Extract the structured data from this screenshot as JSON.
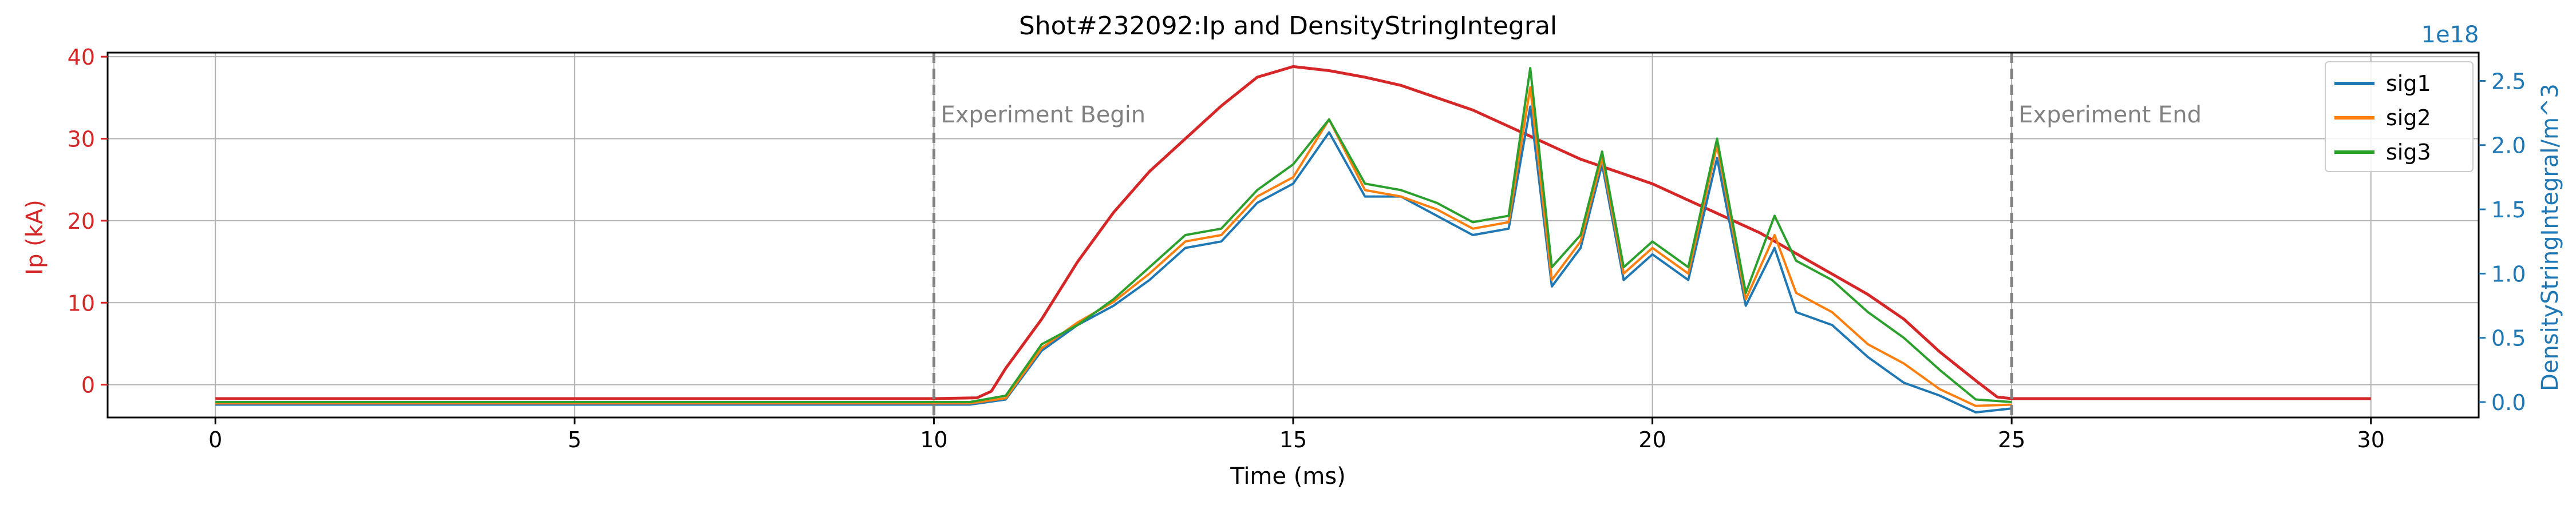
{
  "chart_data": {
    "type": "line",
    "title": "Shot#232092:Ip and DensityStringIntegral",
    "xlabel": "Time (ms)",
    "ylabel_left": "Ip (kA)",
    "ylabel_right": "DensityStringIntegral/m^3",
    "right_axis_multiplier": "1e18",
    "xlim": [
      -1.5,
      31.5
    ],
    "ylim_left": [
      -4.0,
      40.5
    ],
    "ylim_right": [
      -0.12,
      2.72
    ],
    "x_ticks": [
      0,
      5,
      10,
      15,
      20,
      25,
      30
    ],
    "y_left_ticks": [
      0,
      10,
      20,
      30,
      40
    ],
    "y_right_ticks": [
      0.0,
      0.5,
      1.0,
      1.5,
      2.0,
      2.5
    ],
    "grid": true,
    "legend_position": "top-right",
    "colors": {
      "ip": "#d62728",
      "left_axis": "#d62728",
      "right_axis": "#1f77b4",
      "annotation": "#808080"
    },
    "annotations": [
      {
        "x": 10,
        "label": "Experiment Begin"
      },
      {
        "x": 25,
        "label": "Experiment End"
      }
    ],
    "ip_series": {
      "axis": "left",
      "x": [
        0,
        10,
        10.6,
        10.8,
        11.0,
        11.5,
        12.0,
        12.5,
        13.0,
        13.5,
        14.0,
        14.5,
        15.0,
        15.5,
        16.0,
        16.5,
        17.0,
        17.5,
        18.0,
        18.5,
        19.0,
        19.5,
        20.0,
        20.5,
        21.0,
        21.5,
        22.0,
        22.5,
        23.0,
        23.5,
        24.0,
        24.5,
        24.8,
        25.0,
        30.0
      ],
      "y": [
        -1.7,
        -1.7,
        -1.6,
        -0.8,
        2.0,
        8.0,
        15.0,
        21.0,
        26.0,
        30.0,
        34.0,
        37.5,
        38.8,
        38.3,
        37.5,
        36.5,
        35.0,
        33.5,
        31.5,
        29.5,
        27.5,
        26.0,
        24.5,
        22.5,
        20.5,
        18.5,
        16.0,
        13.5,
        11.0,
        8.0,
        4.0,
        0.5,
        -1.5,
        -1.7,
        -1.7
      ]
    },
    "series": [
      {
        "name": "sig1",
        "color": "#1f77b4",
        "axis": "right",
        "x": [
          0,
          10.5,
          11.0,
          11.5,
          12.0,
          12.5,
          13.0,
          13.5,
          14.0,
          14.5,
          15.0,
          15.5,
          16.0,
          16.5,
          17.0,
          17.5,
          18.0,
          18.3,
          18.6,
          19.0,
          19.3,
          19.6,
          20.0,
          20.5,
          20.9,
          21.3,
          21.7,
          22.0,
          22.5,
          23.0,
          23.5,
          24.0,
          24.5,
          25.0
        ],
        "y": [
          -0.02,
          -0.02,
          0.02,
          0.4,
          0.6,
          0.75,
          0.95,
          1.2,
          1.25,
          1.55,
          1.7,
          2.1,
          1.6,
          1.6,
          1.45,
          1.3,
          1.35,
          2.3,
          0.9,
          1.2,
          1.85,
          0.95,
          1.15,
          0.95,
          1.9,
          0.75,
          1.2,
          0.7,
          0.6,
          0.35,
          0.15,
          0.05,
          -0.08,
          -0.05
        ]
      },
      {
        "name": "sig2",
        "color": "#ff7f0e",
        "axis": "right",
        "x": [
          0,
          10.5,
          11.0,
          11.5,
          12.0,
          12.5,
          13.0,
          13.5,
          14.0,
          14.5,
          15.0,
          15.5,
          16.0,
          16.5,
          17.0,
          17.5,
          18.0,
          18.3,
          18.6,
          19.0,
          19.3,
          19.6,
          20.0,
          20.5,
          20.9,
          21.3,
          21.7,
          22.0,
          22.5,
          23.0,
          23.5,
          24.0,
          24.5,
          25.0
        ],
        "y": [
          -0.01,
          -0.01,
          0.03,
          0.42,
          0.62,
          0.78,
          1.0,
          1.25,
          1.3,
          1.6,
          1.75,
          2.2,
          1.65,
          1.6,
          1.5,
          1.35,
          1.4,
          2.45,
          0.95,
          1.25,
          1.9,
          1.0,
          1.2,
          1.0,
          2.0,
          0.8,
          1.3,
          0.85,
          0.7,
          0.45,
          0.3,
          0.1,
          -0.03,
          -0.02
        ]
      },
      {
        "name": "sig3",
        "color": "#2ca02c",
        "axis": "right",
        "x": [
          0,
          10.5,
          11.0,
          11.5,
          12.0,
          12.5,
          13.0,
          13.5,
          14.0,
          14.5,
          15.0,
          15.5,
          16.0,
          16.5,
          17.0,
          17.5,
          18.0,
          18.3,
          18.6,
          19.0,
          19.3,
          19.6,
          20.0,
          20.5,
          20.9,
          21.3,
          21.7,
          22.0,
          22.5,
          23.0,
          23.5,
          24.0,
          24.5,
          25.0
        ],
        "y": [
          0.0,
          0.0,
          0.05,
          0.45,
          0.6,
          0.8,
          1.05,
          1.3,
          1.35,
          1.65,
          1.85,
          2.2,
          1.7,
          1.65,
          1.55,
          1.4,
          1.45,
          2.6,
          1.05,
          1.3,
          1.95,
          1.05,
          1.25,
          1.05,
          2.05,
          0.85,
          1.45,
          1.1,
          0.95,
          0.7,
          0.5,
          0.25,
          0.02,
          0.0
        ]
      }
    ]
  }
}
